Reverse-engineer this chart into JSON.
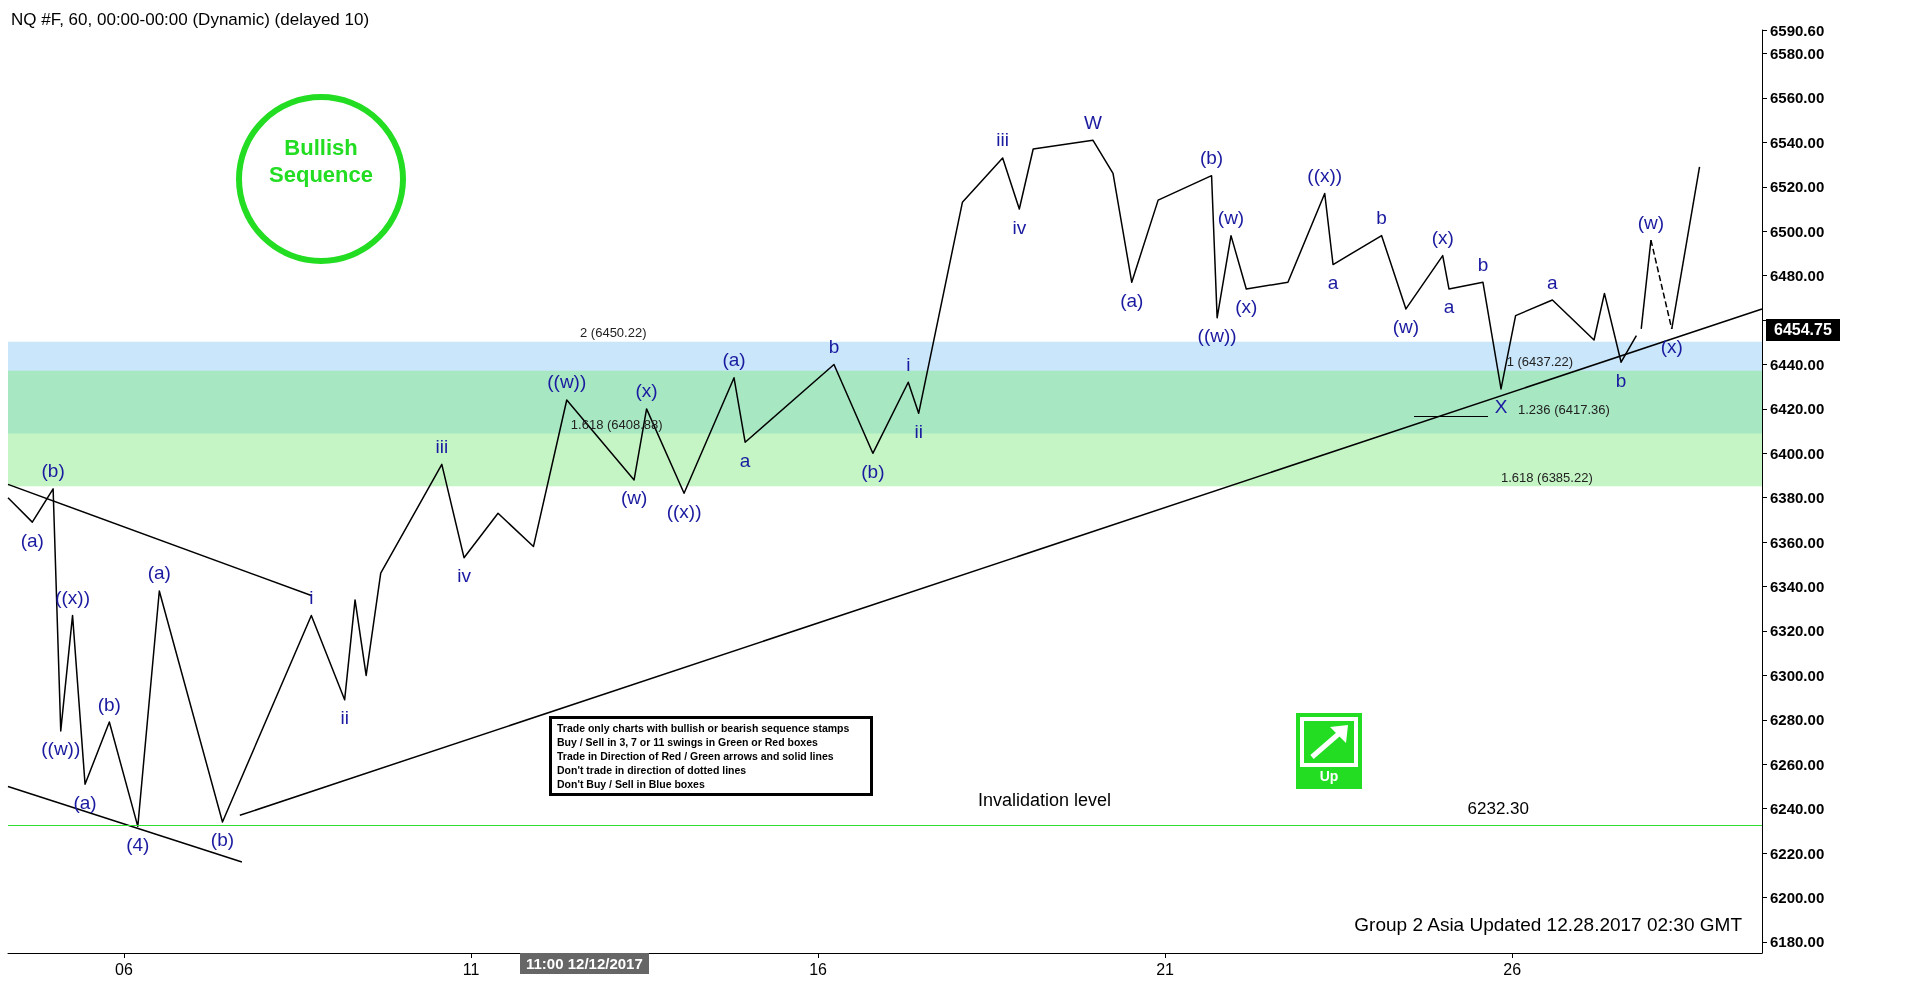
{
  "chart_data": {
    "type": "line",
    "title": "NQ #F, 60, 00:00-00:00 (Dynamic) (delayed 10)",
    "marker": "none",
    "xlim": [
      4.33,
      29.6
    ],
    "xticks": [
      {
        "value": 6,
        "label": "06"
      },
      {
        "value": 11,
        "label": "11"
      },
      {
        "value": 16,
        "label": "16"
      },
      {
        "value": 21,
        "label": "21"
      },
      {
        "value": 26,
        "label": "26"
      }
    ],
    "ylim": [
      6175,
      6590.6
    ],
    "yticks": [
      {
        "value": 6180,
        "label": "6180.00"
      },
      {
        "value": 6200,
        "label": "6200.00"
      },
      {
        "value": 6220,
        "label": "6220.00"
      },
      {
        "value": 6240,
        "label": "6240.00"
      },
      {
        "value": 6260,
        "label": "6260.00"
      },
      {
        "value": 6280,
        "label": "6280.00"
      },
      {
        "value": 6300,
        "label": "6300.00"
      },
      {
        "value": 6320,
        "label": "6320.00"
      },
      {
        "value": 6340,
        "label": "6340.00"
      },
      {
        "value": 6360,
        "label": "6360.00"
      },
      {
        "value": 6380,
        "label": "6380.00"
      },
      {
        "value": 6400,
        "label": "6400.00"
      },
      {
        "value": 6420,
        "label": "6420.00"
      },
      {
        "value": 6440,
        "label": "6440.00"
      },
      {
        "value": 6460,
        "label": null
      },
      {
        "value": 6480,
        "label": "6480.00"
      },
      {
        "value": 6500,
        "label": "6500.00"
      },
      {
        "value": 6520,
        "label": "6520.00"
      },
      {
        "value": 6540,
        "label": "6540.00"
      },
      {
        "value": 6560,
        "label": "6560.00"
      },
      {
        "value": 6580,
        "label": "6580.00"
      },
      {
        "value": 6590.6,
        "label": "6590.60"
      }
    ],
    "series": [
      {
        "color": "#000000",
        "line_style": "solid",
        "x": [
          4.33,
          4.68,
          4.98,
          5.09,
          5.26,
          5.44,
          5.79,
          6.2,
          6.51,
          7.42,
          8.7,
          9.18,
          9.33,
          9.49,
          9.7,
          10.58,
          10.9,
          11.39,
          11.9,
          12.38,
          13.35,
          13.53,
          14.07,
          14.79,
          14.95,
          16.23,
          16.79,
          17.3,
          17.45,
          18.08,
          18.66,
          18.9,
          19.1,
          19.96,
          20.25,
          20.52,
          20.9,
          21.67,
          21.75,
          21.95,
          22.17,
          22.77,
          23.3,
          23.42,
          24.12,
          24.47,
          25.0,
          25.09,
          25.58,
          25.84,
          26.05,
          26.58,
          27.18,
          27.33,
          27.57,
          27.79
        ],
        "values": [
          6380,
          6369,
          6384,
          6275,
          6327,
          6251,
          6279,
          6232,
          6338,
          6234,
          6327,
          6289,
          6334,
          6300,
          6346,
          6395,
          6353,
          6373,
          6358,
          6424,
          6388,
          6420,
          6382,
          6434,
          6405,
          6440,
          6400,
          6432,
          6418,
          6513,
          6533,
          6510,
          6537,
          6541,
          6526,
          6477,
          6514,
          6525,
          6461,
          6498,
          6474,
          6477,
          6517,
          6485,
          6498,
          6465,
          6489,
          6474,
          6477,
          6429,
          6462,
          6469,
          6451,
          6472,
          6441,
          6453
        ]
      },
      {
        "color": "#000000",
        "line_style": "solid",
        "x": [
          4.33,
          8.7
        ],
        "values": [
          6386,
          6336
        ]
      },
      {
        "color": "#000000",
        "line_style": "solid",
        "x": [
          4.33,
          7.7
        ],
        "values": [
          6250,
          6216
        ]
      },
      {
        "color": "#000000",
        "line_style": "solid",
        "x": [
          7.67,
          29.6
        ],
        "values": [
          6237,
          6465
        ]
      },
      {
        "color": "#000000",
        "line_style": "solid",
        "x": [
          27.86,
          28.0
        ],
        "values": [
          6456,
          6496
        ]
      },
      {
        "color": "#000000",
        "line_style": "dashed",
        "x": [
          28.0,
          28.3
        ],
        "values": [
          6496,
          6456
        ]
      },
      {
        "color": "#000000",
        "line_style": "solid",
        "x": [
          28.3,
          28.7
        ],
        "values": [
          6456,
          6529
        ]
      }
    ],
    "ref_lines": [
      {
        "axis": "y",
        "value": 6232.3,
        "label": "6232.30",
        "color": "#33dd33"
      }
    ],
    "bands": [
      {
        "axis": "y",
        "from": 6408.88,
        "to": 6450.22,
        "color": "#88c8f5"
      },
      {
        "axis": "y",
        "from": 6385.22,
        "to": 6437.22,
        "color": "#7ee87e"
      }
    ],
    "annotations": [
      "Bullish Sequence",
      "Up",
      "Trade only charts with bullish or bearish sequence stamps",
      "Buy / Sell in 3, 7 or 11 swings in Green or Red boxes",
      "Trade in Direction of Red / Green arrows and solid lines",
      "Don't trade in direction of dotted lines",
      "Don't Buy / Sell in Blue boxes",
      "Group 2 Asia Updated 12.28.2017 02:30 GMT",
      "11:00 12/12/2017",
      "6454.75",
      "Invalidation level",
      "1.236 (6417.36)",
      {
        "text": "2 (6450.22)",
        "x": 13.05,
        "y": 6450.22
      },
      {
        "text": "1.618 (6408.88)",
        "x": 13.1,
        "y": 6408.88
      },
      {
        "text": "1 (6437.22)",
        "x": 26.4,
        "y": 6437.22
      },
      {
        "text": "1.618 (6385.22)",
        "x": 26.5,
        "y": 6385.22
      },
      {
        "text": "(b)",
        "x": 4.98,
        "y": 6384
      },
      {
        "text": "(a)",
        "x": 4.68,
        "y": 6369
      },
      {
        "text": "((x))",
        "x": 5.26,
        "y": 6327
      },
      {
        "text": "((w))",
        "x": 5.09,
        "y": 6275
      },
      {
        "text": "(b)",
        "x": 5.79,
        "y": 6279
      },
      {
        "text": "(a)",
        "x": 5.44,
        "y": 6251
      },
      {
        "text": "(4)",
        "x": 6.2,
        "y": 6232
      },
      {
        "text": "(a)",
        "x": 6.51,
        "y": 6338
      },
      {
        "text": "(b)",
        "x": 7.42,
        "y": 6234
      },
      {
        "text": "i",
        "x": 8.7,
        "y": 6327
      },
      {
        "text": "ii",
        "x": 9.18,
        "y": 6289
      },
      {
        "text": "iii",
        "x": 10.58,
        "y": 6395
      },
      {
        "text": "iv",
        "x": 10.9,
        "y": 6353
      },
      {
        "text": "((w))",
        "x": 12.38,
        "y": 6424
      },
      {
        "text": "(w)",
        "x": 13.35,
        "y": 6388
      },
      {
        "text": "(x)",
        "x": 13.53,
        "y": 6420
      },
      {
        "text": "((x))",
        "x": 14.07,
        "y": 6382
      },
      {
        "text": "(a)",
        "x": 14.79,
        "y": 6434
      },
      {
        "text": "a",
        "x": 14.95,
        "y": 6405
      },
      {
        "text": "b",
        "x": 16.23,
        "y": 6440
      },
      {
        "text": "(b)",
        "x": 16.79,
        "y": 6400
      },
      {
        "text": "i",
        "x": 17.3,
        "y": 6432
      },
      {
        "text": "ii",
        "x": 17.45,
        "y": 6418
      },
      {
        "text": "iii",
        "x": 18.66,
        "y": 6533
      },
      {
        "text": "iv",
        "x": 18.9,
        "y": 6510
      },
      {
        "text": "W",
        "x": 19.96,
        "y": 6541
      },
      {
        "text": "(a)",
        "x": 20.52,
        "y": 6477
      },
      {
        "text": "(b)",
        "x": 21.67,
        "y": 6525
      },
      {
        "text": "((w))",
        "x": 21.75,
        "y": 6461
      },
      {
        "text": "(w)",
        "x": 21.95,
        "y": 6498
      },
      {
        "text": "(x)",
        "x": 22.17,
        "y": 6474
      },
      {
        "text": "((x))",
        "x": 23.3,
        "y": 6517
      },
      {
        "text": "a",
        "x": 23.42,
        "y": 6485
      },
      {
        "text": "b",
        "x": 24.12,
        "y": 6498
      },
      {
        "text": "(w)",
        "x": 24.47,
        "y": 6465
      },
      {
        "text": "(x)",
        "x": 25.0,
        "y": 6489
      },
      {
        "text": "a",
        "x": 25.09,
        "y": 6474
      },
      {
        "text": "b",
        "x": 25.58,
        "y": 6477
      },
      {
        "text": "X",
        "x": 25.84,
        "y": 6429
      },
      {
        "text": "a",
        "x": 26.58,
        "y": 6469
      },
      {
        "text": "b",
        "x": 27.57,
        "y": 6441
      },
      {
        "text": "(w)",
        "x": 28.0,
        "y": 6496
      },
      {
        "text": "(x)",
        "x": 28.3,
        "y": 6456
      }
    ]
  }
}
